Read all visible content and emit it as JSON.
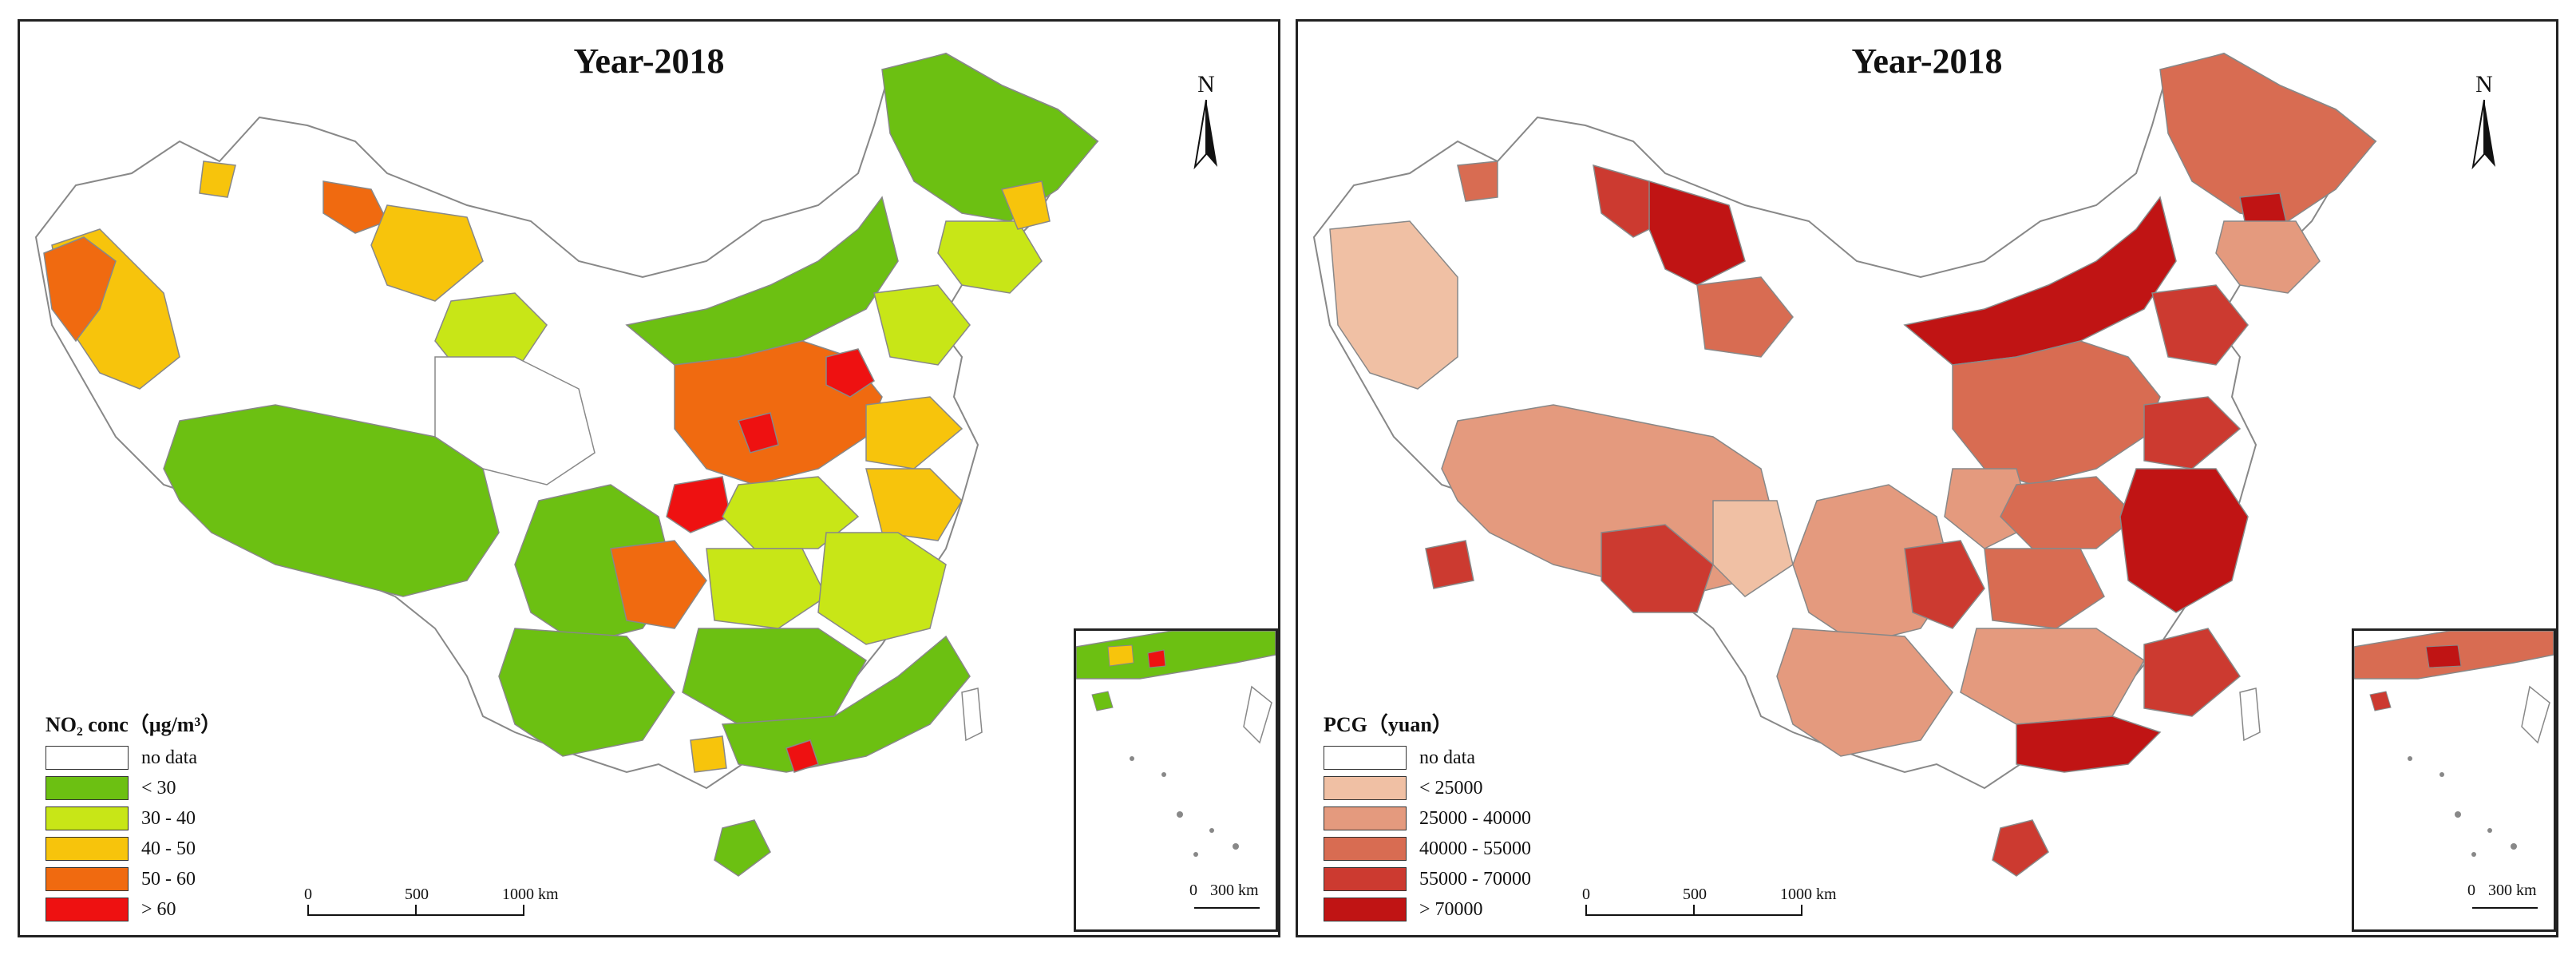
{
  "panels": [
    {
      "title": "Year-2018",
      "north_label": "N",
      "legend": {
        "title": "NO₂ conc（μg/m³）",
        "items": [
          {
            "label": "no data",
            "color": "#ffffff"
          },
          {
            "label": "< 30",
            "color": "#6cc012"
          },
          {
            "label": "30 - 40",
            "color": "#c8e617"
          },
          {
            "label": "40 - 50",
            "color": "#f7c40c"
          },
          {
            "label": "50 - 60",
            "color": "#f06a10"
          },
          {
            "label": "> 60",
            "color": "#ee1111"
          }
        ]
      },
      "scale": {
        "ticks": [
          "0",
          "500",
          "1000 km"
        ]
      },
      "inset_scale": {
        "ticks": [
          "0",
          "300 km"
        ]
      }
    },
    {
      "title": "Year-2018",
      "north_label": "N",
      "legend": {
        "title": "PCG（yuan）",
        "items": [
          {
            "label": "no data",
            "color": "#ffffff"
          },
          {
            "label": "< 25000",
            "color": "#f0c0a4"
          },
          {
            "label": "25000 - 40000",
            "color": "#e49a7e"
          },
          {
            "label": "40000 - 55000",
            "color": "#d86c52"
          },
          {
            "label": "55000 - 70000",
            "color": "#cc3a30"
          },
          {
            "label": "> 70000",
            "color": "#c01414"
          }
        ]
      },
      "scale": {
        "ticks": [
          "0",
          "500",
          "1000 km"
        ]
      },
      "inset_scale": {
        "ticks": [
          "0",
          "300 km"
        ]
      }
    }
  ]
}
